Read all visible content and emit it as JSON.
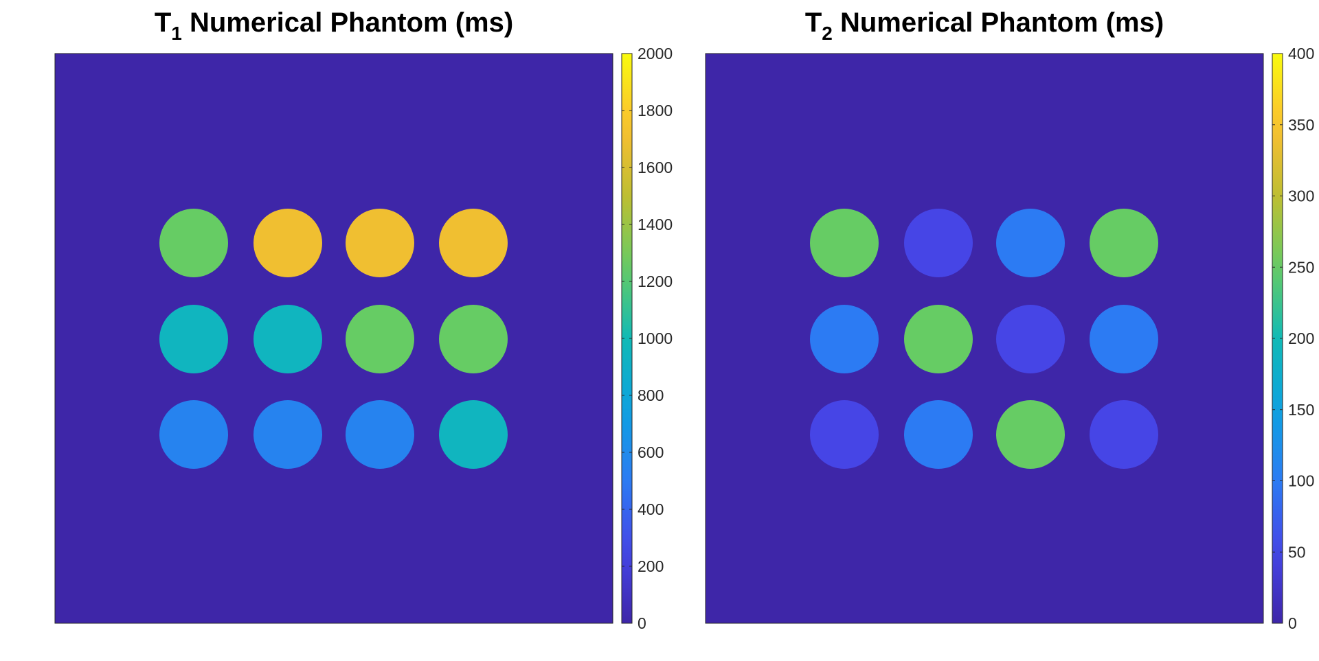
{
  "chart_data": [
    {
      "type": "heatmap",
      "title": {
        "base": "T",
        "subscript": "1",
        "rest": " Numerical Phantom (ms)"
      },
      "background_value": 0,
      "grid": {
        "rows": 3,
        "cols": 4
      },
      "values": [
        [
          1250,
          1700,
          1700,
          1700
        ],
        [
          950,
          950,
          1250,
          1250
        ],
        [
          550,
          550,
          550,
          950
        ]
      ],
      "colorbar": {
        "min": 0,
        "max": 2000,
        "ticks": [
          0,
          200,
          400,
          600,
          800,
          1000,
          1200,
          1400,
          1600,
          1800,
          2000
        ]
      },
      "colormap": "parula"
    },
    {
      "type": "heatmap",
      "title": {
        "base": "T",
        "subscript": "2",
        "rest": " Numerical Phantom (ms)"
      },
      "background_value": 0,
      "grid": {
        "rows": 3,
        "cols": 4
      },
      "values": [
        [
          250,
          50,
          100,
          250
        ],
        [
          100,
          250,
          50,
          100
        ],
        [
          50,
          100,
          250,
          50
        ]
      ],
      "colorbar": {
        "min": 0,
        "max": 400,
        "ticks": [
          0,
          50,
          100,
          150,
          200,
          250,
          300,
          350,
          400
        ]
      },
      "colormap": "parula"
    }
  ]
}
